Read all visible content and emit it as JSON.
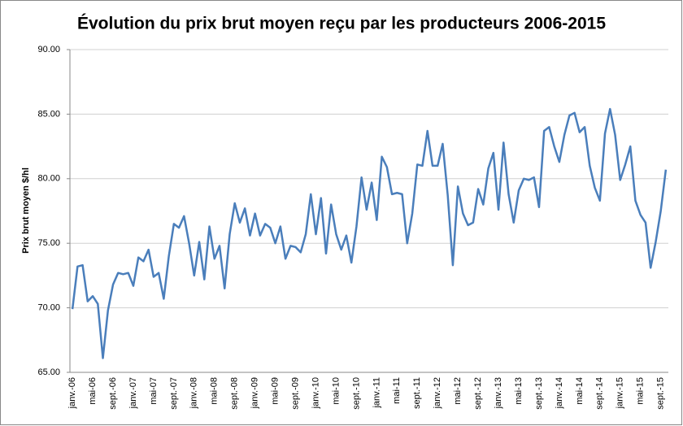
{
  "chart_data": {
    "type": "line",
    "title": "Évolution du prix brut moyen reçu par les producteurs 2006-2015",
    "y_label": "Prix brut moyen $/hl",
    "color": "#4a7ebb",
    "grid": true,
    "ylim": [
      65,
      90
    ],
    "yticks": [
      {
        "value": 65,
        "label": "65.00"
      },
      {
        "value": 70,
        "label": "70.00"
      },
      {
        "value": 75,
        "label": "75.00"
      },
      {
        "value": 80,
        "label": "80.00"
      },
      {
        "value": 85,
        "label": "85.00"
      },
      {
        "value": 90,
        "label": "90.00"
      }
    ],
    "categories": [
      "janv.-06",
      null,
      null,
      null,
      "mai-06",
      null,
      null,
      null,
      "sept.-06",
      null,
      null,
      null,
      "janv.-07",
      null,
      null,
      null,
      "mai-07",
      null,
      null,
      null,
      "sept.-07",
      null,
      null,
      null,
      "janv.-08",
      null,
      null,
      null,
      "mai-08",
      null,
      null,
      null,
      "sept.-08",
      null,
      null,
      null,
      "janv.-09",
      null,
      null,
      null,
      "mai-09",
      null,
      null,
      null,
      "sept.-09",
      null,
      null,
      null,
      "janv.-10",
      null,
      null,
      null,
      "mai-10",
      null,
      null,
      null,
      "sept.-10",
      null,
      null,
      null,
      "janv.-11",
      null,
      null,
      null,
      "mai-11",
      null,
      null,
      null,
      "sept.-11",
      null,
      null,
      null,
      "janv.-12",
      null,
      null,
      null,
      "mai-12",
      null,
      null,
      null,
      "sept.-12",
      null,
      null,
      null,
      "janv.-13",
      null,
      null,
      null,
      "mai-13",
      null,
      null,
      null,
      "sept.-13",
      null,
      null,
      null,
      "janv.-14",
      null,
      null,
      null,
      "mai-14",
      null,
      null,
      null,
      "sept.-14",
      null,
      null,
      null,
      "janv.-15",
      null,
      null,
      null,
      "mai-15",
      null,
      null,
      null,
      "sept.-15",
      null
    ],
    "values": [
      69.9,
      73.2,
      73.3,
      70.5,
      70.9,
      70.3,
      66.1,
      69.8,
      71.8,
      72.7,
      72.6,
      72.7,
      71.7,
      73.9,
      73.6,
      74.5,
      72.4,
      72.7,
      70.7,
      74.0,
      76.5,
      76.2,
      77.1,
      75.0,
      72.5,
      75.1,
      72.2,
      76.3,
      73.8,
      74.8,
      71.5,
      75.7,
      78.1,
      76.6,
      77.7,
      75.6,
      77.3,
      75.6,
      76.5,
      76.2,
      75.0,
      76.3,
      73.8,
      74.8,
      74.7,
      74.3,
      75.7,
      78.8,
      75.7,
      78.5,
      74.2,
      78.0,
      75.7,
      74.5,
      75.6,
      73.5,
      76.3,
      80.1,
      77.6,
      79.7,
      76.8,
      81.7,
      80.9,
      78.8,
      78.9,
      78.8,
      75.0,
      77.3,
      81.1,
      81.0,
      83.7,
      81.0,
      81.0,
      82.7,
      78.7,
      73.3,
      79.4,
      77.3,
      76.4,
      76.6,
      79.2,
      78.0,
      80.8,
      82.0,
      77.6,
      82.8,
      78.8,
      76.6,
      79.1,
      80.0,
      79.9,
      80.1,
      77.8,
      83.7,
      84.0,
      82.5,
      81.3,
      83.4,
      84.9,
      85.1,
      83.6,
      84.0,
      81.0,
      79.3,
      78.3,
      83.5,
      85.4,
      83.4,
      79.9,
      81.1,
      82.5,
      78.3,
      77.2,
      76.6,
      73.1,
      75.1,
      77.5,
      80.7
    ]
  }
}
